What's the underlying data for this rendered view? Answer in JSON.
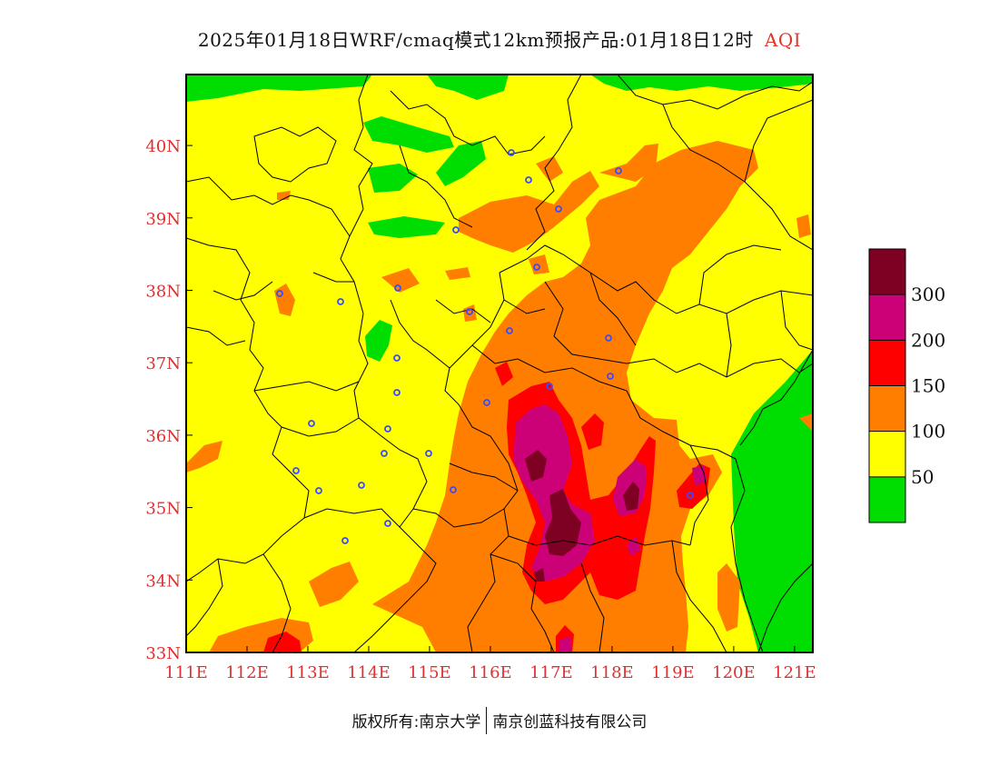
{
  "title": {
    "main": "2025年01月18日WRF/cmaq模式12km预报产品:01月18日12时",
    "product": "AQI"
  },
  "footer": {
    "left": "版权所有:南京大学",
    "right": "南京创蓝科技有限公司"
  },
  "axes": {
    "lon_labels": [
      "111E",
      "112E",
      "113E",
      "114E",
      "115E",
      "116E",
      "117E",
      "118E",
      "119E",
      "120E",
      "121E"
    ],
    "lat_labels": [
      "33N",
      "34N",
      "35N",
      "36N",
      "37N",
      "38N",
      "39N",
      "40N"
    ],
    "lon_range": [
      111,
      121.3
    ],
    "lat_range": [
      33,
      40.98
    ],
    "tick_color": "#e03030"
  },
  "legend": {
    "labels": [
      "50",
      "100",
      "150",
      "200",
      "300"
    ],
    "colors": [
      "#00dd00",
      "#ffff00",
      "#ff7e00",
      "#ff0000",
      "#cc0077",
      "#7e0023"
    ]
  },
  "colors": {
    "good": "#00dd00",
    "moderate": "#ffff00",
    "sensitive": "#ff7e00",
    "unhealthy": "#ff0000",
    "very_unhealthy": "#cc0077",
    "hazardous": "#7e0023",
    "boundary": "#000000",
    "station": "#3a4cff"
  }
}
